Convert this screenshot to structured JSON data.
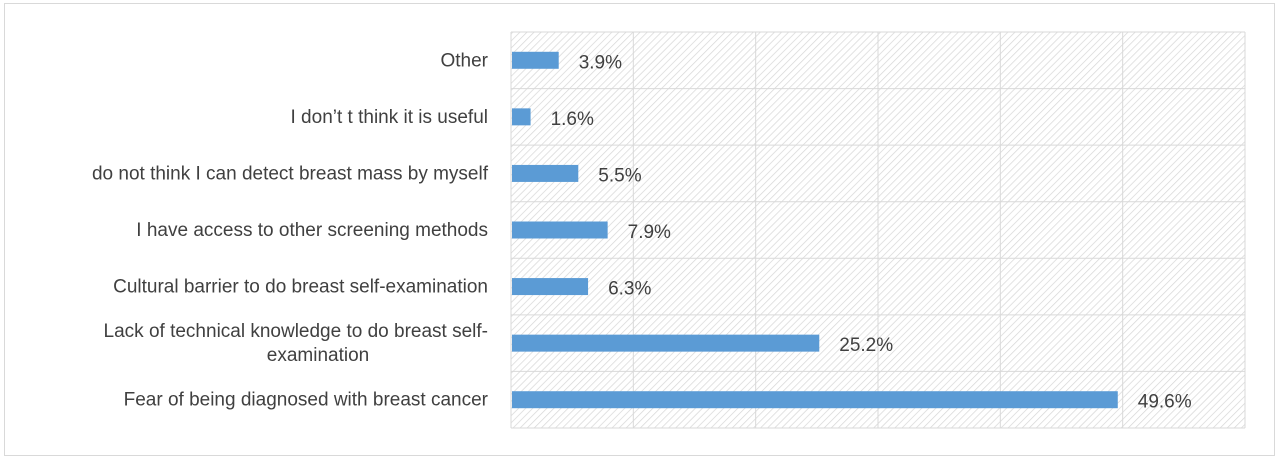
{
  "chart_data": {
    "type": "bar",
    "orientation": "horizontal",
    "categories": [
      "Other",
      "I don’t t think it is useful",
      "do not think I can detect breast mass by myself",
      "I have access to other screening methods",
      "Cultural barrier to do breast self-examination",
      "Lack of technical knowledge to do breast self-examination",
      "Fear of being diagnosed with breast cancer"
    ],
    "category_lines": [
      [
        "Other"
      ],
      [
        "I don’t t think it is useful"
      ],
      [
        "do not think I can detect breast mass by myself"
      ],
      [
        "I have access to other screening methods"
      ],
      [
        "Cultural barrier to do breast self-examination"
      ],
      [
        "Lack of technical knowledge to do breast self-",
        "examination"
      ],
      [
        "Fear of being diagnosed with breast cancer"
      ]
    ],
    "values": [
      3.9,
      1.6,
      5.5,
      7.9,
      6.3,
      25.2,
      49.6
    ],
    "value_labels": [
      "3.9%",
      "1.6%",
      "5.5%",
      "7.9%",
      "6.3%",
      "25.2%",
      "49.6%"
    ],
    "xlim": [
      0,
      60
    ],
    "x_gridline_step": 10,
    "grid": true,
    "bar_color": "#5b9bd5",
    "title": "",
    "xlabel": "",
    "ylabel": ""
  }
}
